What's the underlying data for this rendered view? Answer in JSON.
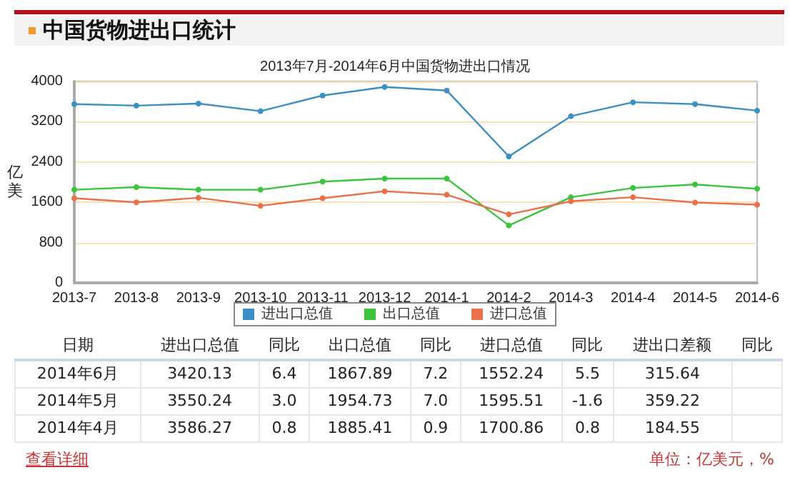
{
  "chart_data": [
    {
      "type": "line",
      "title": "中国货物进出口统计",
      "subtitle": "2013年7月-2014年6月中国货物进出口情况",
      "ylabel": "亿美",
      "categories": [
        "2013-7",
        "2013-8",
        "2013-9",
        "2013-10",
        "2013-11",
        "2013-12",
        "2014-1",
        "2014-2",
        "2014-3",
        "2014-4",
        "2014-5",
        "2014-6"
      ],
      "series": [
        {
          "name": "进出口总值",
          "color": "#3a8fc4",
          "values": [
            3550,
            3520,
            3560,
            3410,
            3720,
            3890,
            3820,
            2510,
            3310,
            3586.27,
            3550.24,
            3420.13
          ]
        },
        {
          "name": "出口总值",
          "color": "#3cc43c",
          "values": [
            1850,
            1900,
            1850,
            1850,
            2010,
            2070,
            2070,
            1140,
            1700,
            1885.41,
            1954.73,
            1867.89
          ]
        },
        {
          "name": "进口总值",
          "color": "#e8704a",
          "values": [
            1680,
            1600,
            1690,
            1530,
            1680,
            1820,
            1750,
            1360,
            1620,
            1700.86,
            1595.51,
            1552.24
          ]
        }
      ],
      "ylim": [
        0,
        4000
      ],
      "yticks": [
        0,
        800,
        1600,
        2400,
        3200,
        4000
      ],
      "grid": "y",
      "legend": "bottom",
      "marker": "circle",
      "line_style": "solid"
    },
    {
      "type": "other",
      "annotations": [
        "日期\t进出口总值\t同比\t出口总值\t同比\t进口总值\t同比\t进出口差额\t同比",
        "2014年6月\t3420.13\t6.4\t1867.89\t7.2\t1552.24\t5.5\t315.64\t",
        "2014年5月\t3550.24\t3.0\t1954.73\t7.0\t1595.51\t-1.6\t359.22\t",
        "2014年4月\t3586.27\t0.8\t1885.41\t0.9\t1700.86\t0.8\t184.55\t",
        "查看详细",
        "单位：亿美元，%"
      ]
    }
  ]
}
